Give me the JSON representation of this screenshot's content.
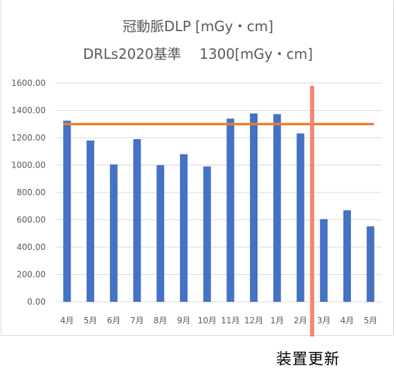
{
  "chart_data": {
    "type": "bar",
    "title": "冠動脈DLP [mGy・cm]",
    "subtitle": "DRLs2020基準　 1300[mGy・cm]",
    "categories": [
      "4月",
      "5月",
      "6月",
      "7月",
      "8月",
      "9月",
      "10月",
      "11月",
      "12月",
      "1月",
      "2月",
      "3月",
      "4月",
      "5月"
    ],
    "series": [
      {
        "values": [
          1325,
          1180,
          1005,
          1190,
          1000,
          1080,
          990,
          1340,
          1378,
          1373,
          1232,
          605,
          670,
          552
        ],
        "color": "#4472c4"
      }
    ],
    "reference_line": {
      "value": 1300,
      "color": "#ed7d31"
    },
    "marker_line": {
      "between_categories": [
        10,
        11
      ],
      "label": "装置更新",
      "color": "#f4866c"
    },
    "ylim": [
      0,
      1600
    ],
    "yticks": [
      "0.00",
      "200.00",
      "400.00",
      "600.00",
      "800.00",
      "1000.00",
      "1200.00",
      "1400.00",
      "1600.00"
    ],
    "grid": true,
    "legend": "none"
  }
}
